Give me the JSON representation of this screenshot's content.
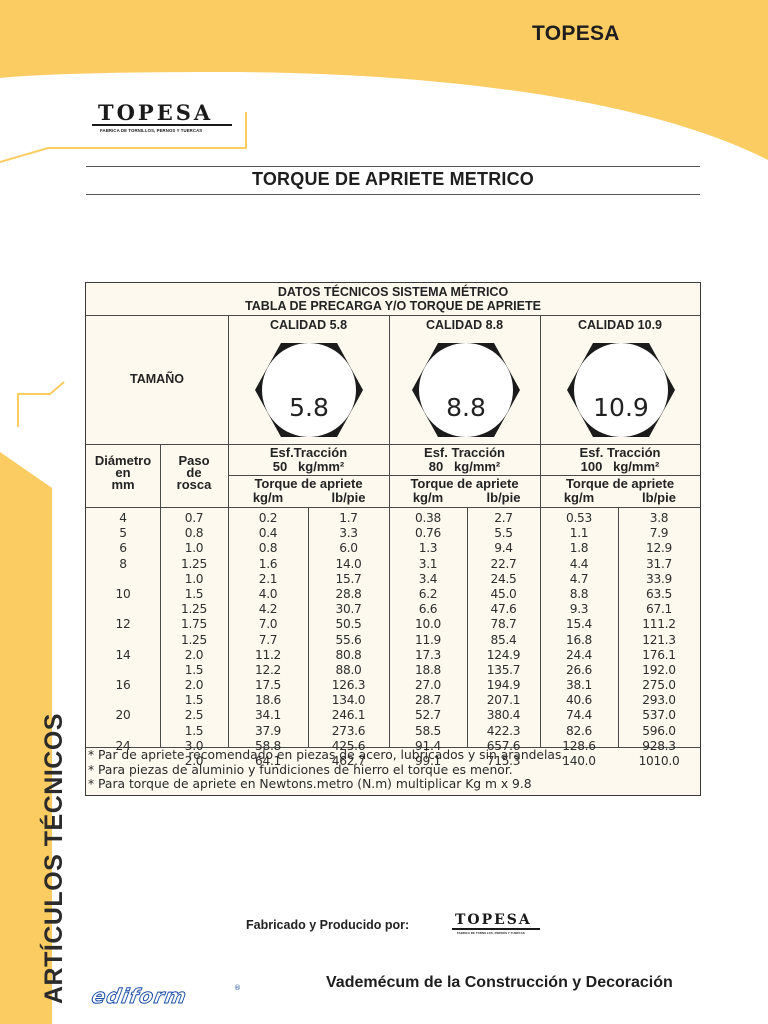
{
  "header": {
    "brand": "TOPESA",
    "logo": {
      "word": "TOPESA",
      "tagline": "FABRICA DE TORNILLOS, PERNOS Y TUERCAS"
    },
    "title": "TORQUE DE APRIETE METRICO"
  },
  "sidebar": {
    "label": "ARTÍCULOS TÉCNICOS"
  },
  "colors": {
    "accent_yellow": "#fbcc62",
    "table_background": "#fdf9ee",
    "text": "#232323",
    "ediform_blue": "#1d4fa8"
  },
  "table": {
    "title_line1": "DATOS TÉCNICOS SISTEMA MÉTRICO",
    "title_line2": "TABLA DE PRECARGA Y/O TORQUE DE APRIETE",
    "size_header": "TAMAÑO",
    "diameter_header": [
      "Diámetro",
      "en",
      "mm"
    ],
    "pitch_header": [
      "Paso",
      "de",
      "rosca"
    ],
    "grades": [
      {
        "label": "CALIDAD 5.8",
        "mark": "5.8",
        "tensile_label": "Esf.Tracción",
        "tensile_value": "50   kg/mm²",
        "torque_label": "Torque de apriete",
        "unit_kgm": "kg/m",
        "unit_lbpie": "lb/pie"
      },
      {
        "label": "CALIDAD 8.8",
        "mark": "8.8",
        "tensile_label": "Esf. Tracción",
        "tensile_value": "80   kg/mm²",
        "torque_label": "Torque de apriete",
        "unit_kgm": "kg/m",
        "unit_lbpie": "lb/pie"
      },
      {
        "label": "CALIDAD 10.9",
        "mark": "10.9",
        "tensile_label": "Esf. Tracción",
        "tensile_value": "100   kg/mm²",
        "torque_label": "Torque de apriete",
        "unit_kgm": "kg/m",
        "unit_lbpie": "lb/pie"
      }
    ],
    "columns": {
      "diameter": [
        "4",
        "5",
        "6",
        "8",
        "",
        "10",
        "",
        "12",
        "",
        "14",
        "",
        "16",
        "",
        "20",
        "",
        "24",
        ""
      ],
      "pitch": [
        "0.7",
        "0.8",
        "1.0",
        "1.25",
        "1.0",
        "1.5",
        "1.25",
        "1.75",
        "1.25",
        "2.0",
        "1.5",
        "2.0",
        "1.5",
        "2.5",
        "1.5",
        "3.0",
        "2.0"
      ],
      "g58_kgm": [
        "0.2",
        "0.4",
        "0.8",
        "1.6",
        "2.1",
        "4.0",
        "4.2",
        "7.0",
        "7.7",
        "11.2",
        "12.2",
        "17.5",
        "18.6",
        "34.1",
        "37.9",
        "58.8",
        "64.1"
      ],
      "g58_lbpie": [
        "1.7",
        "3.3",
        "6.0",
        "14.0",
        "15.7",
        "28.8",
        "30.7",
        "50.5",
        "55.6",
        "80.8",
        "88.0",
        "126.3",
        "134.0",
        "246.1",
        "273.6",
        "425.6",
        "462.7"
      ],
      "g88_kgm": [
        "0.38",
        "0.76",
        "1.3",
        "3.1",
        "3.4",
        "6.2",
        "6.6",
        "10.0",
        "11.9",
        "17.3",
        "18.8",
        "27.0",
        "28.7",
        "52.7",
        "58.5",
        "91.4",
        "99.1"
      ],
      "g88_lbpie": [
        "2.7",
        "5.5",
        "9.4",
        "22.7",
        "24.5",
        "45.0",
        "47.6",
        "78.7",
        "85.4",
        "124.9",
        "135.7",
        "194.9",
        "207.1",
        "380.4",
        "422.3",
        "657.6",
        "715.3"
      ],
      "g109_kgm": [
        "0.53",
        "1.1",
        "1.8",
        "4.4",
        "4.7",
        "8.8",
        "9.3",
        "15.4",
        "16.8",
        "24.4",
        "26.6",
        "38.1",
        "40.6",
        "74.4",
        "82.6",
        "128.6",
        "140.0"
      ],
      "g109_lbpie": [
        "3.8",
        "7.9",
        "12.9",
        "31.7",
        "33.9",
        "63.5",
        "67.1",
        "111.2",
        "121.3",
        "176.1",
        "192.0",
        "275.0",
        "293.0",
        "537.0",
        "596.0",
        "928.3",
        "1010.0"
      ]
    },
    "notes": [
      "* Par de apriete recomendado en piezas de acero, lubricados y sin arandelas.",
      "* Para piezas de aluminio y fundiciones de hierro el torque es menor.",
      "* Para torque de apriete en Newtons.metro (N.m) multiplicar Kg m x 9.8"
    ]
  },
  "footer": {
    "manufactured_by": "Fabricado y Producido por:",
    "logo_word": "TOPESA",
    "logo_tagline": "FABRICA DE TORNILLOS, PERNOS Y TUERCAS",
    "publication": "Vademécum de la Construcción y Decoración",
    "publisher_logo": "ediform",
    "publisher_reg": "®"
  }
}
